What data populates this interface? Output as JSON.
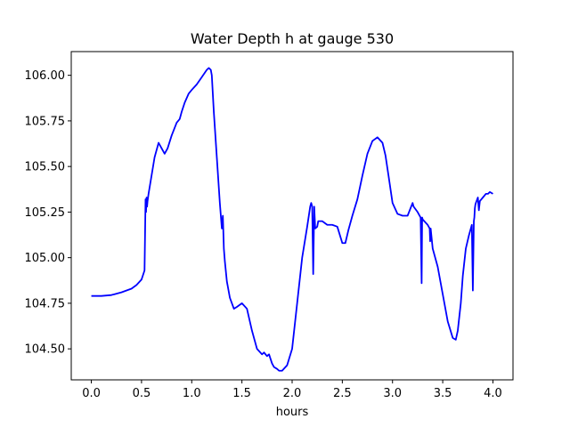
{
  "chart_data": {
    "type": "line",
    "title": "Water Depth h at gauge 530",
    "xlabel": "hours",
    "ylabel": "",
    "xlim": [
      -0.2,
      4.2
    ],
    "ylim": [
      104.33,
      106.13
    ],
    "xticks": [
      0.0,
      0.5,
      1.0,
      1.5,
      2.0,
      2.5,
      3.0,
      3.5,
      4.0
    ],
    "xtick_labels": [
      "0.0",
      "0.5",
      "1.0",
      "1.5",
      "2.0",
      "2.5",
      "3.0",
      "3.5",
      "4.0"
    ],
    "yticks": [
      104.5,
      104.75,
      105.0,
      105.25,
      105.5,
      105.75,
      106.0
    ],
    "ytick_labels": [
      "104.50",
      "104.75",
      "105.00",
      "105.25",
      "105.50",
      "105.75",
      "106.00"
    ],
    "grid": false,
    "series": [
      {
        "color": "#0000ff",
        "x": [
          0.0,
          0.1,
          0.2,
          0.3,
          0.4,
          0.45,
          0.5,
          0.53,
          0.54,
          0.545,
          0.55,
          0.555,
          0.56,
          0.57,
          0.6,
          0.63,
          0.67,
          0.7,
          0.73,
          0.76,
          0.8,
          0.85,
          0.88,
          0.9,
          0.93,
          0.97,
          1.0,
          1.05,
          1.1,
          1.15,
          1.17,
          1.19,
          1.2,
          1.22,
          1.25,
          1.28,
          1.3,
          1.31,
          1.32,
          1.33,
          1.35,
          1.38,
          1.42,
          1.45,
          1.5,
          1.55,
          1.6,
          1.65,
          1.7,
          1.72,
          1.75,
          1.77,
          1.8,
          1.82,
          1.85,
          1.87,
          1.9,
          1.95,
          2.0,
          2.05,
          2.1,
          2.15,
          2.18,
          2.19,
          2.2,
          2.21,
          2.22,
          2.225,
          2.23,
          2.25,
          2.26,
          2.3,
          2.35,
          2.4,
          2.45,
          2.5,
          2.53,
          2.56,
          2.6,
          2.65,
          2.7,
          2.75,
          2.8,
          2.85,
          2.9,
          2.93,
          2.96,
          3.0,
          3.05,
          3.1,
          3.15,
          3.2,
          3.21,
          3.25,
          3.28,
          3.29,
          3.295,
          3.3,
          3.35,
          3.37,
          3.375,
          3.38,
          3.4,
          3.45,
          3.5,
          3.55,
          3.6,
          3.63,
          3.65,
          3.68,
          3.7,
          3.73,
          3.76,
          3.79,
          3.8,
          3.81,
          3.815,
          3.82,
          3.825,
          3.83,
          3.85,
          3.86,
          3.87,
          3.9,
          3.93,
          3.95,
          3.97,
          4.0
        ],
        "y": [
          104.79,
          104.79,
          104.795,
          104.81,
          104.83,
          104.85,
          104.88,
          104.93,
          105.32,
          105.25,
          105.33,
          105.28,
          105.31,
          105.35,
          105.45,
          105.55,
          105.63,
          105.6,
          105.57,
          105.6,
          105.67,
          105.74,
          105.76,
          105.8,
          105.85,
          105.9,
          105.92,
          105.95,
          105.99,
          106.03,
          106.04,
          106.03,
          106.0,
          105.8,
          105.55,
          105.3,
          105.16,
          105.23,
          105.05,
          104.98,
          104.87,
          104.78,
          104.72,
          104.73,
          104.75,
          104.72,
          104.6,
          104.5,
          104.47,
          104.48,
          104.46,
          104.47,
          104.42,
          104.4,
          104.39,
          104.38,
          104.38,
          104.41,
          104.5,
          104.75,
          105.0,
          105.17,
          105.28,
          105.3,
          105.28,
          104.91,
          105.28,
          105.22,
          105.16,
          105.17,
          105.2,
          105.2,
          105.18,
          105.18,
          105.17,
          105.08,
          105.08,
          105.15,
          105.23,
          105.32,
          105.45,
          105.57,
          105.64,
          105.66,
          105.63,
          105.56,
          105.45,
          105.3,
          105.24,
          105.23,
          105.23,
          105.3,
          105.28,
          105.25,
          105.22,
          104.86,
          105.22,
          105.21,
          105.18,
          105.16,
          105.09,
          105.16,
          105.05,
          104.95,
          104.8,
          104.65,
          104.56,
          104.55,
          104.6,
          104.75,
          104.9,
          105.05,
          105.12,
          105.18,
          104.82,
          105.2,
          105.22,
          105.27,
          105.29,
          105.3,
          105.33,
          105.26,
          105.31,
          105.33,
          105.35,
          105.35,
          105.36,
          105.35
        ]
      }
    ]
  }
}
